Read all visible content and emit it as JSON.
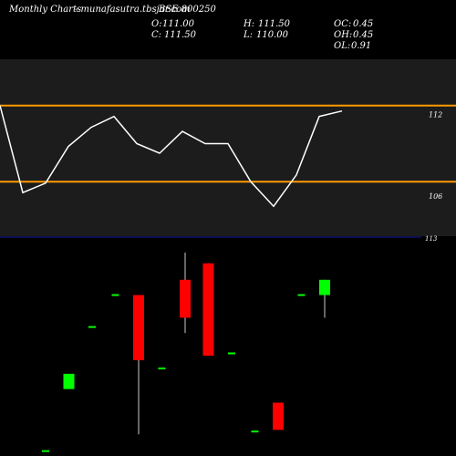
{
  "header": {
    "brand": "Monthly Charts",
    "site": "- munafasutra.tbsjar.com",
    "symbol": "BSE 800250",
    "o_label": "O:",
    "o_value": "111.00",
    "c_label": "C:",
    "c_value": "111.50",
    "h_label": "H:",
    "h_value": "111.50",
    "l_label": "L:",
    "l_value": "110.00",
    "oc_label": "OC:",
    "oc_value": "0.45",
    "oh_label": "OH:",
    "oh_value": "0.45",
    "ol_label": "OL:",
    "ol_value": "0.91"
  },
  "colors": {
    "background": "#000000",
    "line_panel_bg": "#1c1c1c",
    "candle_panel_bg": "#000000",
    "band": "#ff9900",
    "line": "#ffffff",
    "up": "#00ff00",
    "down": "#ff0000",
    "text": "#ffffff",
    "divider": "#1a1aa0"
  },
  "chart_data": [
    {
      "type": "line",
      "series": [
        {
          "values": [
            112.6,
            106.2,
            106.9,
            109.6,
            111.0,
            111.8,
            109.8,
            109.1,
            110.7,
            109.8,
            109.8,
            107.0,
            105.2,
            107.5,
            111.8,
            112.2
          ]
        }
      ],
      "bands": [
        112.6,
        107.0
      ],
      "y_ticks": [
        "112",
        "106"
      ],
      "ylim": [
        103,
        116
      ]
    },
    {
      "type": "candlestick",
      "y_tick": "113",
      "ylim": [
        0,
        100
      ],
      "candles": [
        {
          "open": 1.5,
          "close": 1.5,
          "high": 1.5,
          "low": 1.5
        },
        {
          "open": 31.6,
          "close": 39.0,
          "high": 39.0,
          "low": 31.6
        },
        {
          "open": 61.7,
          "close": 61.7,
          "high": 61.7,
          "low": 61.7
        },
        {
          "open": 77.2,
          "close": 77.2,
          "high": 77.2,
          "low": 77.2
        },
        {
          "open": 77.2,
          "close": 45.6,
          "high": 77.2,
          "low": 9.6
        },
        {
          "open": 41.6,
          "close": 41.6,
          "high": 41.6,
          "low": 41.6
        },
        {
          "open": 84.6,
          "close": 66.2,
          "high": 97.8,
          "low": 58.8
        },
        {
          "open": 92.6,
          "close": 47.8,
          "high": 92.6,
          "low": 47.8
        },
        {
          "open": 48.9,
          "close": 48.9,
          "high": 48.9,
          "low": 48.9
        },
        {
          "open": 11.0,
          "close": 11.0,
          "high": 11.0,
          "low": 11.0
        },
        {
          "open": 25.0,
          "close": 11.8,
          "high": 25.0,
          "low": 11.8
        },
        {
          "open": 77.2,
          "close": 77.2,
          "high": 77.2,
          "low": 77.2
        },
        {
          "open": 77.2,
          "close": 84.6,
          "high": 84.6,
          "low": 66.2
        }
      ]
    }
  ]
}
